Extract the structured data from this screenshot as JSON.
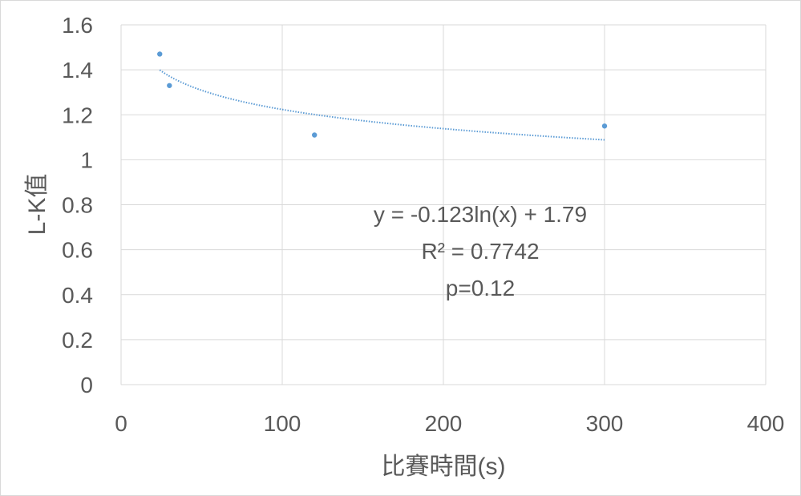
{
  "chart_data": {
    "type": "scatter",
    "xlabel": "比賽時間(s)",
    "ylabel": "L-K值",
    "xlim": [
      0,
      400
    ],
    "ylim": [
      0,
      1.6
    ],
    "x_ticks": [
      "0",
      "100",
      "200",
      "300",
      "400"
    ],
    "y_ticks": [
      "0",
      "0.2",
      "0.4",
      "0.6",
      "0.8",
      "1",
      "1.2",
      "1.4",
      "1.6"
    ],
    "grid": true,
    "series": [
      {
        "points": [
          {
            "x": 24,
            "y": 1.47
          },
          {
            "x": 30,
            "y": 1.33
          },
          {
            "x": 120,
            "y": 1.11
          },
          {
            "x": 300,
            "y": 1.15
          }
        ],
        "color": "#5b9bd5"
      }
    ],
    "trendline": {
      "type": "logarithmic",
      "a": -0.123,
      "b": 1.79,
      "x_range": [
        24,
        300
      ],
      "color": "#5b9bd5"
    },
    "annotations": {
      "equation": "y = -0.123ln(x) + 1.79",
      "r_squared": "R² = 0.7742",
      "p_value": "p=0.12"
    }
  }
}
